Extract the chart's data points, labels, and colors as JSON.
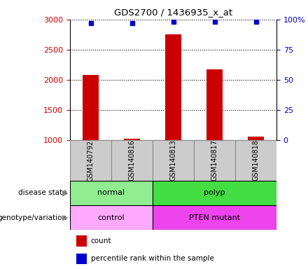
{
  "title": "GDS2700 / 1436935_x_at",
  "samples": [
    "GSM140792",
    "GSM140816",
    "GSM140813",
    "GSM140817",
    "GSM140818"
  ],
  "counts": [
    2080,
    1020,
    2750,
    2170,
    1060
  ],
  "percentile_ranks": [
    97,
    97,
    98,
    98,
    98
  ],
  "ylim_left": [
    1000,
    3000
  ],
  "ylim_right": [
    0,
    100
  ],
  "yticks_left": [
    1000,
    1500,
    2000,
    2500,
    3000
  ],
  "yticks_right": [
    0,
    25,
    50,
    75,
    100
  ],
  "bar_color": "#cc0000",
  "dot_color": "#0000cc",
  "bar_width": 0.4,
  "disease_state_normal_color": "#90ee90",
  "disease_state_polyp_color": "#44dd44",
  "genotype_control_color": "#ffaaff",
  "genotype_mutant_color": "#ee44ee",
  "left_axis_color": "#cc0000",
  "right_axis_color": "#0000cc",
  "sample_box_color": "#cccccc",
  "sample_box_edge": "#888888",
  "fig_width": 4.4,
  "fig_height": 3.84,
  "dpi": 100
}
